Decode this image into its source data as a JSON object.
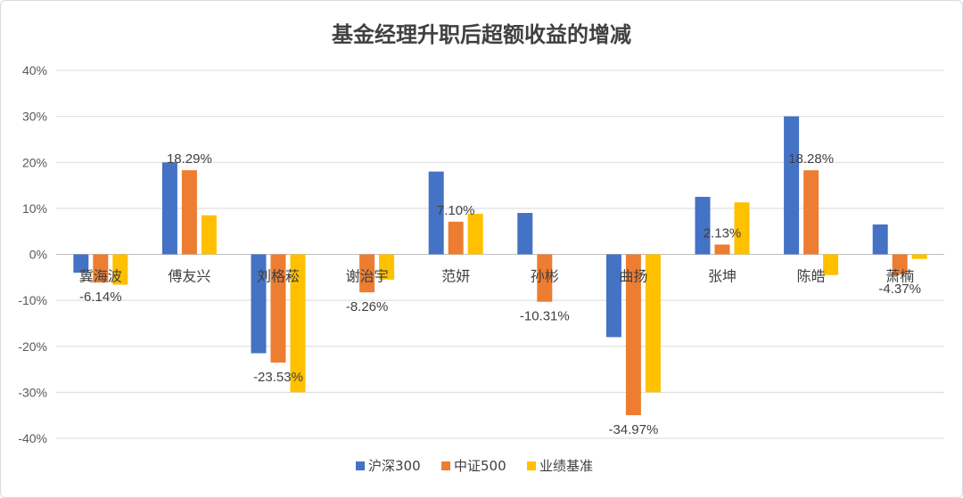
{
  "chart_data": {
    "type": "bar",
    "title": "基金经理升职后超额收益的增减",
    "xlabel": "",
    "ylabel": "",
    "ylim": [
      -0.4,
      0.4
    ],
    "yticks": [
      0.4,
      0.3,
      0.2,
      0.1,
      0,
      -0.1,
      -0.2,
      -0.3,
      -0.4
    ],
    "ytick_labels": [
      "40%",
      "30%",
      "20%",
      "10%",
      "0%",
      "-10%",
      "-20%",
      "-30%",
      "-40%"
    ],
    "grid": true,
    "legend_position": "bottom",
    "categories": [
      "冀海波",
      "傅友兴",
      "刘格菘",
      "谢治宇",
      "范妍",
      "孙彬",
      "曲扬",
      "张坤",
      "陈皓",
      "萧楠"
    ],
    "series": [
      {
        "name": "沪深300",
        "color": "#4472C4",
        "values": [
          -0.04,
          0.2,
          -0.215,
          0.0,
          0.18,
          0.09,
          -0.18,
          0.125,
          0.3,
          0.065
        ]
      },
      {
        "name": "中证500",
        "color": "#ED7D31",
        "values": [
          -0.0614,
          0.1829,
          -0.2353,
          -0.0826,
          0.071,
          -0.1031,
          -0.3497,
          0.0213,
          0.1828,
          -0.0437
        ]
      },
      {
        "name": "业绩基准",
        "color": "#FFC000",
        "values": [
          -0.066,
          0.085,
          -0.3,
          -0.055,
          0.088,
          0.0,
          -0.3,
          0.113,
          -0.045,
          -0.01
        ]
      }
    ],
    "data_labels": [
      "-6.14%",
      "18.29%",
      "-23.53%",
      "-8.26%",
      "7.10%",
      "-10.31%",
      "-34.97%",
      "2.13%",
      "18.28%",
      "-4.37%"
    ]
  }
}
